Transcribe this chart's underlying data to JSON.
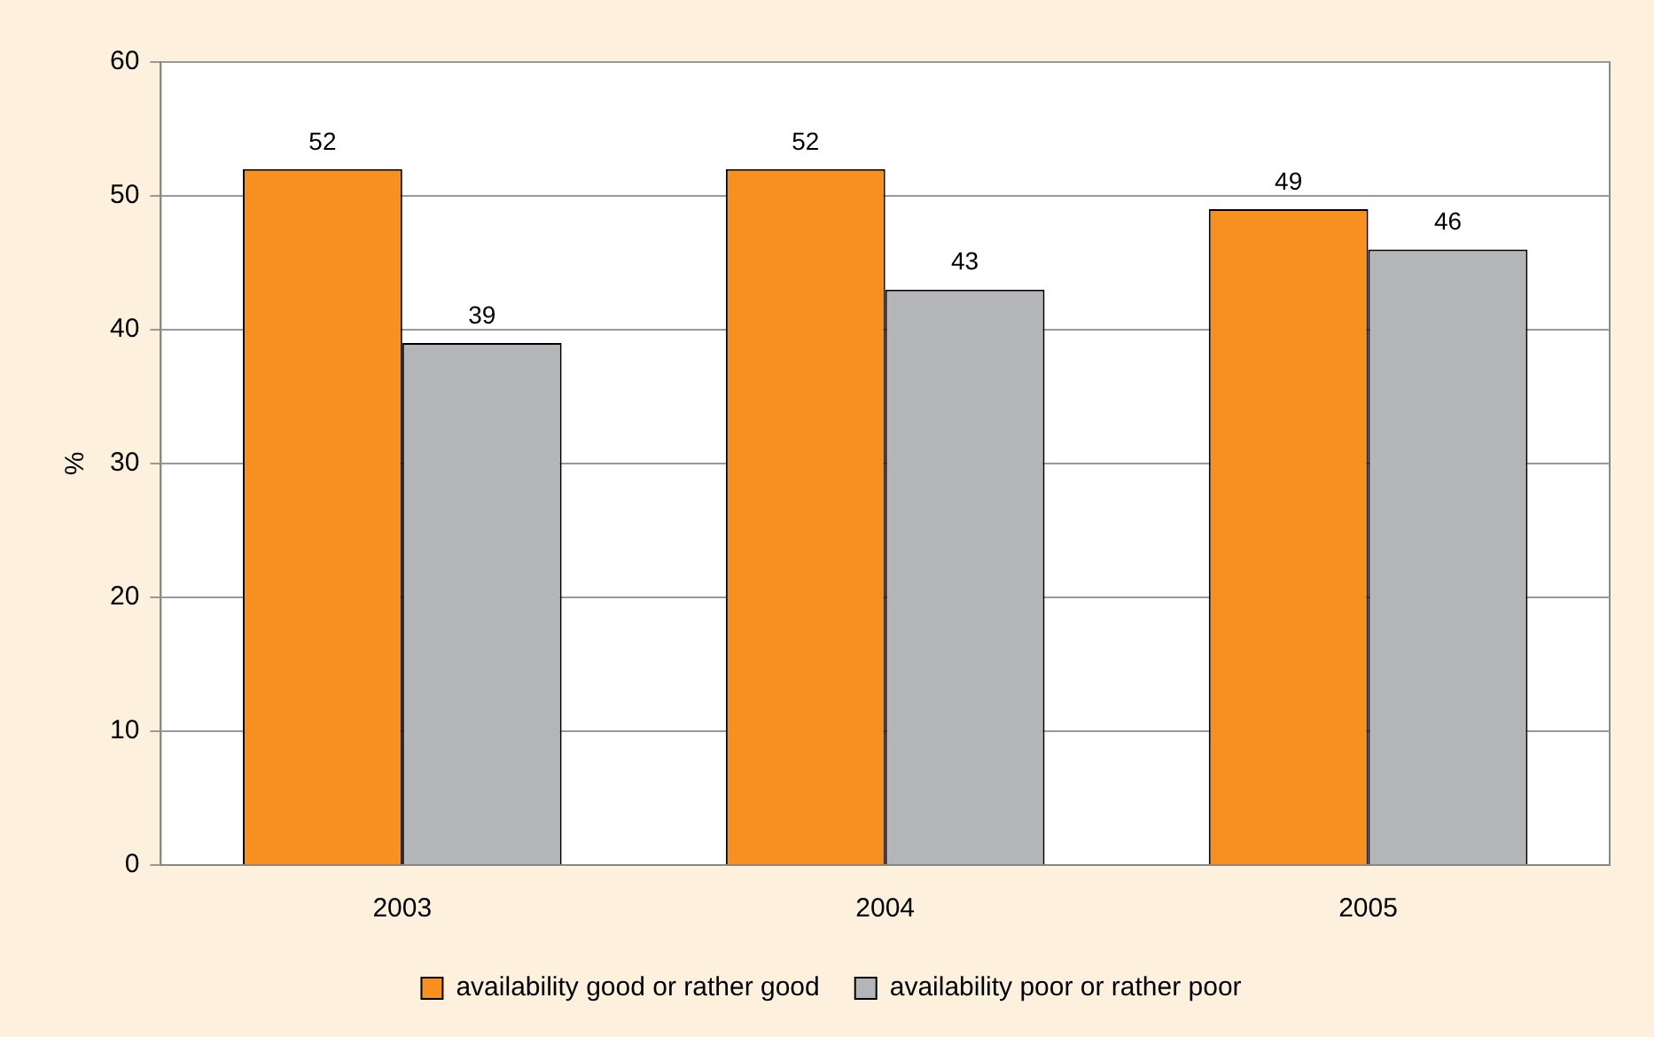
{
  "chart_data": {
    "type": "bar",
    "ylabel": "%",
    "categories": [
      "2003",
      "2004",
      "2005"
    ],
    "series": [
      {
        "name": "availability good or rather good",
        "color": "#f7901e",
        "values": [
          52,
          52,
          49
        ]
      },
      {
        "name": "availability poor or rather poor",
        "color": "#b3b5b8",
        "values": [
          39,
          43,
          46
        ]
      }
    ],
    "ylim": [
      0,
      60
    ],
    "yticks": [
      0,
      10,
      20,
      30,
      40,
      50,
      60
    ],
    "grid": "y",
    "legend": "bottom",
    "data_labels": true
  }
}
